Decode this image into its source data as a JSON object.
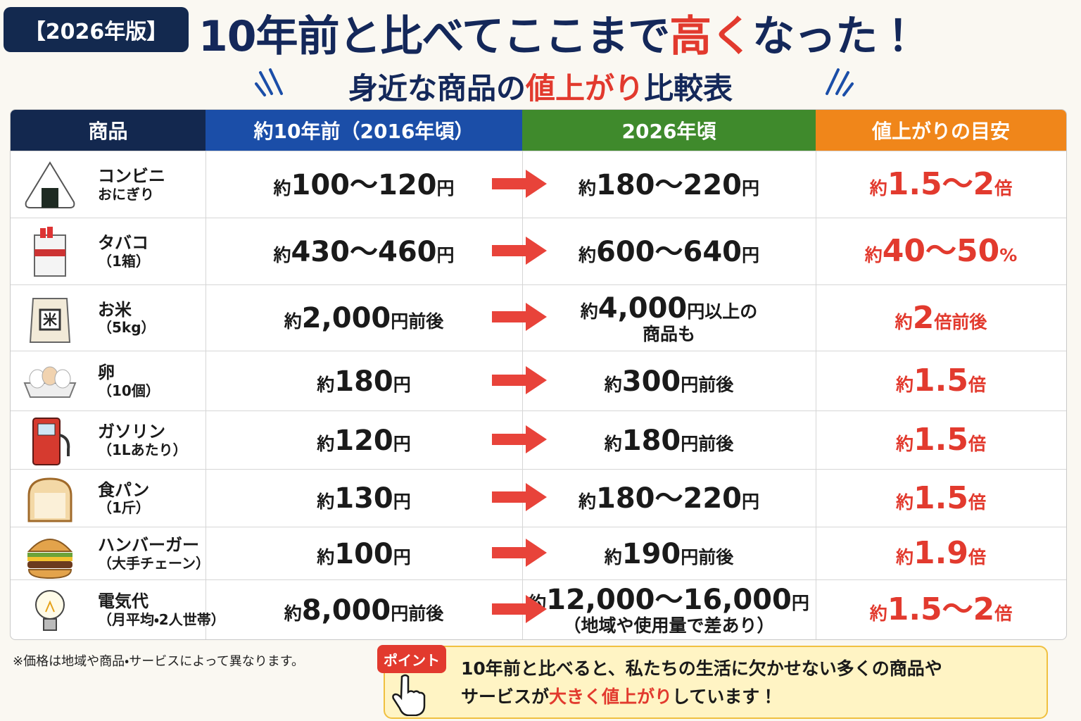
{
  "header": {
    "badge": "【2026年版】",
    "title": [
      "10年前と比べてここまで",
      "高く",
      "なった！"
    ],
    "subtitle": [
      "身近な商品の",
      "値上がり",
      "比較表"
    ]
  },
  "table": {
    "columns": [
      "商品",
      "約10年前（2016年頃）",
      "2026年頃",
      "値上がりの目安"
    ],
    "rows": [
      {
        "name": [
          "コンビニ",
          "おにぎり"
        ],
        "before": [
          [
            "約",
            "100〜120",
            "円"
          ]
        ],
        "after": [
          [
            "約",
            "180〜220",
            "円"
          ]
        ],
        "increase": [
          [
            "約",
            "1.5〜2",
            "倍"
          ]
        ]
      },
      {
        "name": [
          "タバコ",
          "（1箱）"
        ],
        "before": [
          [
            "約",
            "430〜460",
            "円"
          ]
        ],
        "after": [
          [
            "約",
            "600〜640",
            "円"
          ]
        ],
        "increase": [
          [
            "約",
            "40〜50",
            "%"
          ]
        ]
      },
      {
        "name": [
          "お米",
          "（5kg）"
        ],
        "before": [
          [
            "約",
            "2,000",
            "円前後"
          ]
        ],
        "after": [
          [
            "約",
            "4,000",
            "円以上の"
          ],
          [
            "商品も"
          ]
        ],
        "increase": [
          [
            "約",
            "2",
            "倍前後"
          ]
        ]
      },
      {
        "name": [
          "卵",
          "（10個）"
        ],
        "before": [
          [
            "約",
            "180",
            "円"
          ]
        ],
        "after": [
          [
            "約",
            "300",
            "円前後"
          ]
        ],
        "increase": [
          [
            "約",
            "1.5",
            "倍"
          ]
        ]
      },
      {
        "name": [
          "ガソリン",
          "（1Lあたり）"
        ],
        "before": [
          [
            "約",
            "120",
            "円"
          ]
        ],
        "after": [
          [
            "約",
            "180",
            "円前後"
          ]
        ],
        "increase": [
          [
            "約",
            "1.5",
            "倍"
          ]
        ]
      },
      {
        "name": [
          "食パン",
          "（1斤）"
        ],
        "before": [
          [
            "約",
            "130",
            "円"
          ]
        ],
        "after": [
          [
            "約",
            "180〜220",
            "円"
          ]
        ],
        "increase": [
          [
            "約",
            "1.5",
            "倍"
          ]
        ]
      },
      {
        "name": [
          "ハンバーガー",
          "（大手チェーン）"
        ],
        "before": [
          [
            "約",
            "100",
            "円"
          ]
        ],
        "after": [
          [
            "約",
            "190",
            "円前後"
          ]
        ],
        "increase": [
          [
            "約",
            "1.9",
            "倍"
          ]
        ]
      },
      {
        "name": [
          "電気代",
          "（月平均・2人世帯）"
        ],
        "before": [
          [
            "約",
            "8,000",
            "円前後"
          ]
        ],
        "after": [
          [
            "約",
            "12,000〜16,000",
            "円"
          ],
          [
            "（地域や使用量で差あり）"
          ]
        ],
        "increase": [
          [
            "約",
            "1.5〜2",
            "倍"
          ]
        ]
      }
    ]
  },
  "footnote": "※価格は地域や商品・サービスによって異なります。",
  "point": {
    "label": "ポイント",
    "lines": [
      [
        "10年前と比べると、私たちの生活に欠かせない多くの商品や"
      ],
      [
        "サービスが",
        "大きく値上がり",
        "しています！"
      ]
    ]
  }
}
